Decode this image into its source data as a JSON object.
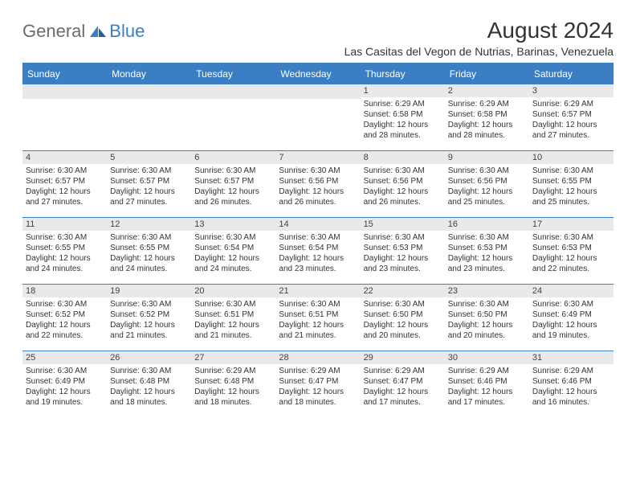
{
  "logo": {
    "general": "General",
    "blue": "Blue"
  },
  "title": "August 2024",
  "location": "Las Casitas del Vegon de Nutrias, Barinas, Venezuela",
  "colors": {
    "header_bg": "#3a7fc4",
    "header_text": "#ffffff",
    "daynum_bg": "#e9e9e9",
    "border": "#3a7fc4",
    "logo_gray": "#6b6b6b",
    "logo_blue": "#3a7fc4"
  },
  "day_headers": [
    "Sunday",
    "Monday",
    "Tuesday",
    "Wednesday",
    "Thursday",
    "Friday",
    "Saturday"
  ],
  "weeks": [
    [
      {
        "n": "",
        "sr": "",
        "ss": "",
        "dl": ""
      },
      {
        "n": "",
        "sr": "",
        "ss": "",
        "dl": ""
      },
      {
        "n": "",
        "sr": "",
        "ss": "",
        "dl": ""
      },
      {
        "n": "",
        "sr": "",
        "ss": "",
        "dl": ""
      },
      {
        "n": "1",
        "sr": "Sunrise: 6:29 AM",
        "ss": "Sunset: 6:58 PM",
        "dl": "Daylight: 12 hours and 28 minutes."
      },
      {
        "n": "2",
        "sr": "Sunrise: 6:29 AM",
        "ss": "Sunset: 6:58 PM",
        "dl": "Daylight: 12 hours and 28 minutes."
      },
      {
        "n": "3",
        "sr": "Sunrise: 6:29 AM",
        "ss": "Sunset: 6:57 PM",
        "dl": "Daylight: 12 hours and 27 minutes."
      }
    ],
    [
      {
        "n": "4",
        "sr": "Sunrise: 6:30 AM",
        "ss": "Sunset: 6:57 PM",
        "dl": "Daylight: 12 hours and 27 minutes."
      },
      {
        "n": "5",
        "sr": "Sunrise: 6:30 AM",
        "ss": "Sunset: 6:57 PM",
        "dl": "Daylight: 12 hours and 27 minutes."
      },
      {
        "n": "6",
        "sr": "Sunrise: 6:30 AM",
        "ss": "Sunset: 6:57 PM",
        "dl": "Daylight: 12 hours and 26 minutes."
      },
      {
        "n": "7",
        "sr": "Sunrise: 6:30 AM",
        "ss": "Sunset: 6:56 PM",
        "dl": "Daylight: 12 hours and 26 minutes."
      },
      {
        "n": "8",
        "sr": "Sunrise: 6:30 AM",
        "ss": "Sunset: 6:56 PM",
        "dl": "Daylight: 12 hours and 26 minutes."
      },
      {
        "n": "9",
        "sr": "Sunrise: 6:30 AM",
        "ss": "Sunset: 6:56 PM",
        "dl": "Daylight: 12 hours and 25 minutes."
      },
      {
        "n": "10",
        "sr": "Sunrise: 6:30 AM",
        "ss": "Sunset: 6:55 PM",
        "dl": "Daylight: 12 hours and 25 minutes."
      }
    ],
    [
      {
        "n": "11",
        "sr": "Sunrise: 6:30 AM",
        "ss": "Sunset: 6:55 PM",
        "dl": "Daylight: 12 hours and 24 minutes."
      },
      {
        "n": "12",
        "sr": "Sunrise: 6:30 AM",
        "ss": "Sunset: 6:55 PM",
        "dl": "Daylight: 12 hours and 24 minutes."
      },
      {
        "n": "13",
        "sr": "Sunrise: 6:30 AM",
        "ss": "Sunset: 6:54 PM",
        "dl": "Daylight: 12 hours and 24 minutes."
      },
      {
        "n": "14",
        "sr": "Sunrise: 6:30 AM",
        "ss": "Sunset: 6:54 PM",
        "dl": "Daylight: 12 hours and 23 minutes."
      },
      {
        "n": "15",
        "sr": "Sunrise: 6:30 AM",
        "ss": "Sunset: 6:53 PM",
        "dl": "Daylight: 12 hours and 23 minutes."
      },
      {
        "n": "16",
        "sr": "Sunrise: 6:30 AM",
        "ss": "Sunset: 6:53 PM",
        "dl": "Daylight: 12 hours and 23 minutes."
      },
      {
        "n": "17",
        "sr": "Sunrise: 6:30 AM",
        "ss": "Sunset: 6:53 PM",
        "dl": "Daylight: 12 hours and 22 minutes."
      }
    ],
    [
      {
        "n": "18",
        "sr": "Sunrise: 6:30 AM",
        "ss": "Sunset: 6:52 PM",
        "dl": "Daylight: 12 hours and 22 minutes."
      },
      {
        "n": "19",
        "sr": "Sunrise: 6:30 AM",
        "ss": "Sunset: 6:52 PM",
        "dl": "Daylight: 12 hours and 21 minutes."
      },
      {
        "n": "20",
        "sr": "Sunrise: 6:30 AM",
        "ss": "Sunset: 6:51 PM",
        "dl": "Daylight: 12 hours and 21 minutes."
      },
      {
        "n": "21",
        "sr": "Sunrise: 6:30 AM",
        "ss": "Sunset: 6:51 PM",
        "dl": "Daylight: 12 hours and 21 minutes."
      },
      {
        "n": "22",
        "sr": "Sunrise: 6:30 AM",
        "ss": "Sunset: 6:50 PM",
        "dl": "Daylight: 12 hours and 20 minutes."
      },
      {
        "n": "23",
        "sr": "Sunrise: 6:30 AM",
        "ss": "Sunset: 6:50 PM",
        "dl": "Daylight: 12 hours and 20 minutes."
      },
      {
        "n": "24",
        "sr": "Sunrise: 6:30 AM",
        "ss": "Sunset: 6:49 PM",
        "dl": "Daylight: 12 hours and 19 minutes."
      }
    ],
    [
      {
        "n": "25",
        "sr": "Sunrise: 6:30 AM",
        "ss": "Sunset: 6:49 PM",
        "dl": "Daylight: 12 hours and 19 minutes."
      },
      {
        "n": "26",
        "sr": "Sunrise: 6:30 AM",
        "ss": "Sunset: 6:48 PM",
        "dl": "Daylight: 12 hours and 18 minutes."
      },
      {
        "n": "27",
        "sr": "Sunrise: 6:29 AM",
        "ss": "Sunset: 6:48 PM",
        "dl": "Daylight: 12 hours and 18 minutes."
      },
      {
        "n": "28",
        "sr": "Sunrise: 6:29 AM",
        "ss": "Sunset: 6:47 PM",
        "dl": "Daylight: 12 hours and 18 minutes."
      },
      {
        "n": "29",
        "sr": "Sunrise: 6:29 AM",
        "ss": "Sunset: 6:47 PM",
        "dl": "Daylight: 12 hours and 17 minutes."
      },
      {
        "n": "30",
        "sr": "Sunrise: 6:29 AM",
        "ss": "Sunset: 6:46 PM",
        "dl": "Daylight: 12 hours and 17 minutes."
      },
      {
        "n": "31",
        "sr": "Sunrise: 6:29 AM",
        "ss": "Sunset: 6:46 PM",
        "dl": "Daylight: 12 hours and 16 minutes."
      }
    ]
  ]
}
